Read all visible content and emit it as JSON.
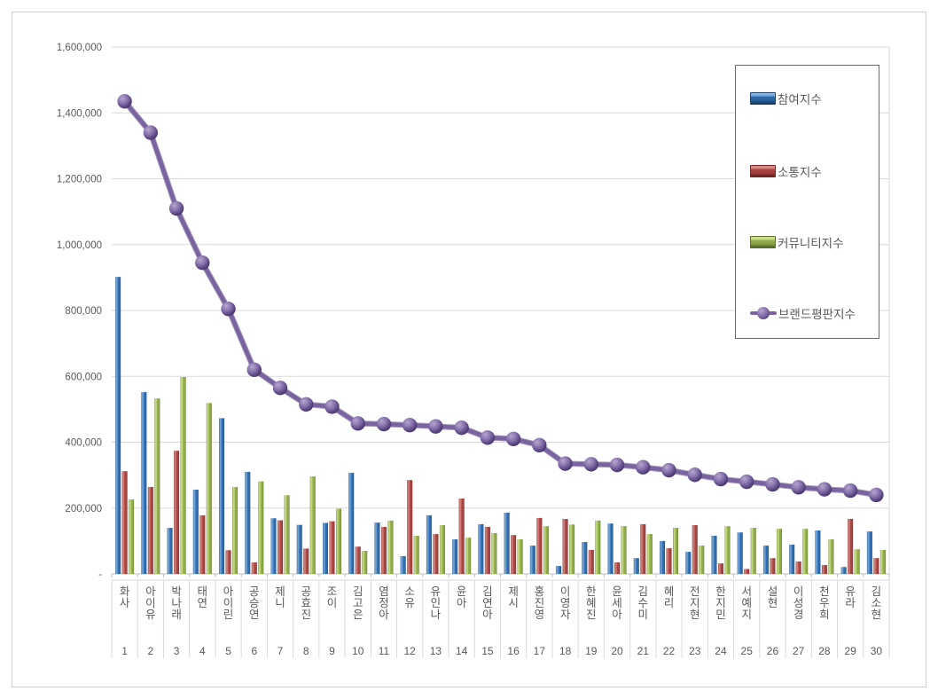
{
  "window": {
    "background": "#ffffff",
    "frame_border_color": "#cfcfcf"
  },
  "text_color": "#595959",
  "gridline_color": "#d9d9d9",
  "axis_line_color": "#c0c0c0",
  "legend": {
    "position": "right-overlay",
    "border_color": "#6b6b6b",
    "items": [
      {
        "label": "참여지수",
        "swatch": "blue-3d-bar"
      },
      {
        "label": "소통지수",
        "swatch": "red-3d-bar"
      },
      {
        "label": "커뮤니티지수",
        "swatch": "green-3d-bar"
      },
      {
        "label": "브랜드평판지수",
        "swatch": "purple-line-marker"
      }
    ]
  },
  "chart_data": {
    "type": "combo (grouped 3D bars + line with spherical markers)",
    "title": "",
    "xlabel": "",
    "ylabel": "",
    "ylim": [
      0,
      1600000
    ],
    "ytick_interval": 200000,
    "ytick_labels": [
      "-",
      "200,000",
      "400,000",
      "600,000",
      "800,000",
      "1,000,000",
      "1,200,000",
      "1,400,000",
      "1,600,000"
    ],
    "grid": true,
    "legend_position": "right",
    "categories": [
      "화사",
      "아이유",
      "박나래",
      "태연",
      "아이린",
      "공승연",
      "제니",
      "공효진",
      "조이",
      "김고은",
      "염정아",
      "소유",
      "유인나",
      "윤아",
      "김연아",
      "제시",
      "홍진영",
      "이영자",
      "한혜진",
      "윤세아",
      "김수미",
      "혜리",
      "전지현",
      "한지민",
      "서예지",
      "설현",
      "이성경",
      "천우희",
      "유라",
      "김소현"
    ],
    "ranks": [
      "1",
      "2",
      "3",
      "4",
      "5",
      "6",
      "7",
      "8",
      "9",
      "10",
      "11",
      "12",
      "13",
      "14",
      "15",
      "16",
      "17",
      "18",
      "19",
      "20",
      "21",
      "22",
      "23",
      "24",
      "25",
      "26",
      "27",
      "28",
      "29",
      "30"
    ],
    "series": [
      {
        "name": "참여지수",
        "type": "bar",
        "color": "#2f6cb0",
        "color_light": "#6e9fd3",
        "color_dark": "#1d3f63",
        "values": [
          902000,
          552000,
          140000,
          256000,
          473000,
          310000,
          169000,
          149000,
          155000,
          307000,
          156000,
          54000,
          178000,
          105000,
          151000,
          186000,
          86000,
          24000,
          97000,
          153000,
          48000,
          100000,
          67000,
          116000,
          126000,
          86000,
          89000,
          132000,
          21000,
          129000
        ]
      },
      {
        "name": "소통지수",
        "type": "bar",
        "color": "#a84441",
        "color_light": "#cc7a75",
        "color_dark": "#662220",
        "values": [
          312000,
          264000,
          374000,
          178000,
          72000,
          35000,
          163000,
          77000,
          160000,
          83000,
          143000,
          285000,
          121000,
          229000,
          143000,
          118000,
          170000,
          167000,
          73000,
          35000,
          151000,
          78000,
          148000,
          32000,
          15000,
          48000,
          38000,
          27000,
          167000,
          48000
        ]
      },
      {
        "name": "커뮤니티지수",
        "type": "bar",
        "color": "#8fac47",
        "color_light": "#c2d680",
        "color_dark": "#55682a",
        "values": [
          226000,
          533000,
          598000,
          519000,
          264000,
          281000,
          239000,
          296000,
          198000,
          70000,
          162000,
          116000,
          148000,
          110000,
          124000,
          105000,
          145000,
          150000,
          162000,
          145000,
          121000,
          140000,
          86000,
          145000,
          140000,
          137000,
          137000,
          105000,
          75000,
          73000
        ]
      },
      {
        "name": "브랜드평판지수",
        "type": "line",
        "color": "#7a63a0",
        "color_light": "#b7a6cf",
        "color_dark": "#55417c",
        "values": [
          1435000,
          1340000,
          1110000,
          945000,
          805000,
          620000,
          565000,
          515000,
          508000,
          457000,
          455000,
          452000,
          448000,
          444000,
          414000,
          410000,
          391000,
          335000,
          333000,
          331000,
          324000,
          315000,
          301000,
          288000,
          280000,
          272000,
          263000,
          257000,
          253000,
          240000
        ]
      }
    ]
  }
}
